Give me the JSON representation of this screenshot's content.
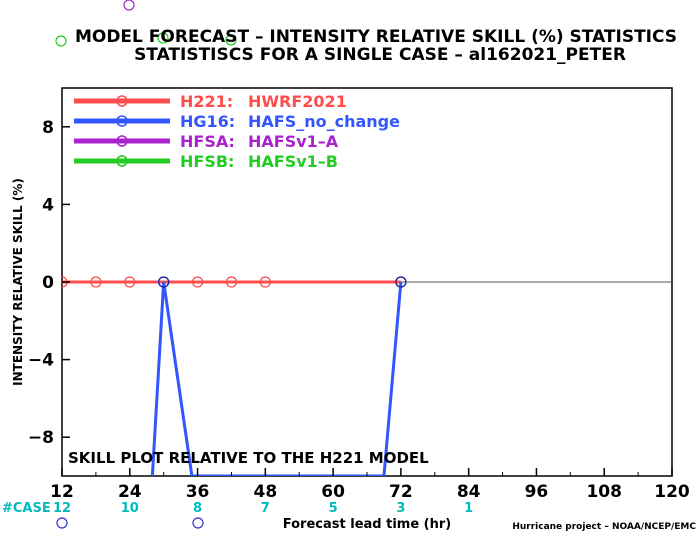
{
  "title_line1": "MODEL FORECAST – INTENSITY RELATIVE SKILL (%) STATISTICS",
  "title_line2": "STATISTISCS FOR A SINGLE CASE – al162021_PETER",
  "annotation": "SKILL PLOT RELATIVE TO THE H221 MODEL",
  "footer_credit": "Hurricane project – NOAA/NCEP/EMC",
  "case_label": "#CASE",
  "chart_data": {
    "type": "line",
    "title": "MODEL FORECAST – INTENSITY RELATIVE SKILL (%) STATISTICS",
    "subtitle": "STATISTISCS FOR A SINGLE CASE – al162021_PETER",
    "xlabel": "Forecast lead time (hr)",
    "ylabel": "INTENSITY RELATIVE SKILL (%)",
    "xlim": [
      12,
      120
    ],
    "ylim": [
      -10,
      10
    ],
    "xticks": [
      12,
      24,
      36,
      48,
      60,
      72,
      84,
      96,
      108,
      120
    ],
    "yticks": [
      -8,
      -4,
      0,
      4,
      8
    ],
    "grid": false,
    "legend_position": "top-left",
    "case_counts": [
      {
        "x": 12,
        "n": "12"
      },
      {
        "x": 24,
        "n": "10"
      },
      {
        "x": 36,
        "n": "8"
      },
      {
        "x": 48,
        "n": "7"
      },
      {
        "x": 60,
        "n": "5"
      },
      {
        "x": 72,
        "n": "3"
      },
      {
        "x": 84,
        "n": "1"
      }
    ],
    "series": [
      {
        "id": "H221",
        "label": "H221:",
        "name": "HWRF2021",
        "color": "#ff4d4d",
        "x": [
          12,
          18,
          24,
          30,
          36,
          42,
          48,
          54,
          60,
          66,
          72
        ],
        "y": [
          0,
          0,
          0,
          0,
          0,
          0,
          0,
          0,
          0,
          0,
          0
        ],
        "markers_x": [
          12,
          18,
          24,
          36,
          42,
          48
        ]
      },
      {
        "id": "HG16",
        "label": "HG16:",
        "name": "HAFS_no_change",
        "color": "#3355ff",
        "x": [
          28,
          30,
          35,
          69,
          72
        ],
        "y": [
          -10,
          0,
          -10,
          -10,
          0
        ],
        "markers_x": [
          30,
          72
        ]
      },
      {
        "id": "HFSA",
        "label": "HFSA:",
        "name": "HAFSv1–A",
        "color": "#aa22cc",
        "x": [],
        "y": [],
        "markers_x": []
      },
      {
        "id": "HFSB",
        "label": "HFSB:",
        "name": "HAFSv1–B",
        "color": "#22cc22",
        "x": [],
        "y": [],
        "markers_x": []
      }
    ],
    "colors": {
      "axis": "#000000",
      "zero_line": "#555555",
      "case_text": "#00bbbb",
      "stray_circle": "#3333cc"
    }
  }
}
